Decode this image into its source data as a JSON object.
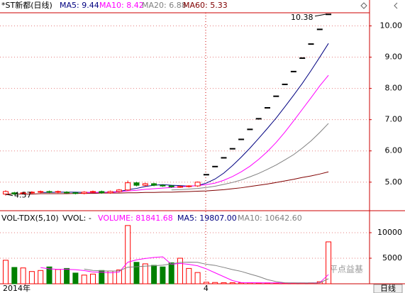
{
  "chart_data": {
    "type": "candlestick",
    "header": [
      {
        "text": "*ST新都(日线)",
        "color": "#000000"
      },
      {
        "text": "MA5: 9.44",
        "color": "#000080"
      },
      {
        "text": "MA10: 8.42",
        "color": "#ff00ff"
      },
      {
        "text": "MA20: 6.88",
        "color": "#808080"
      },
      {
        "text": "MA60: 5.33",
        "color": "#800000"
      }
    ],
    "categories": [
      "2014年",
      null,
      null,
      null,
      null,
      null,
      null,
      null,
      null,
      null,
      null,
      null,
      null,
      null,
      null,
      null,
      null,
      null,
      null,
      null,
      null,
      null,
      null,
      "4",
      null,
      null,
      null,
      null,
      null,
      null,
      null,
      null,
      null,
      null,
      null,
      null,
      null,
      null
    ],
    "open": [
      4.62,
      4.66,
      4.64,
      4.66,
      4.68,
      4.7,
      4.68,
      4.68,
      4.66,
      4.64,
      4.68,
      4.7,
      4.66,
      4.7,
      4.75,
      4.98,
      4.9,
      4.95,
      4.9,
      4.88,
      4.85,
      4.86,
      4.88,
      5.25,
      5.51,
      5.79,
      6.08,
      6.38,
      6.7,
      7.04,
      7.39,
      7.76,
      8.14,
      8.55,
      8.98,
      9.43,
      9.9,
      10.38
    ],
    "high": [
      4.74,
      4.69,
      4.69,
      4.71,
      4.73,
      4.73,
      4.73,
      4.71,
      4.69,
      4.71,
      4.73,
      4.73,
      4.73,
      4.78,
      5.05,
      5.01,
      4.98,
      4.98,
      4.93,
      4.91,
      4.89,
      4.9,
      5.02,
      5.25,
      5.51,
      5.79,
      6.08,
      6.38,
      6.7,
      7.04,
      7.39,
      7.76,
      8.14,
      8.55,
      8.98,
      9.43,
      9.9,
      10.38
    ],
    "low": [
      4.57,
      4.59,
      4.61,
      4.63,
      4.65,
      4.65,
      4.65,
      4.63,
      4.61,
      4.61,
      4.65,
      4.63,
      4.63,
      4.67,
      4.72,
      4.87,
      4.87,
      4.87,
      4.85,
      4.82,
      4.82,
      4.83,
      4.85,
      5.25,
      5.51,
      5.79,
      6.08,
      6.38,
      6.7,
      7.04,
      7.39,
      7.76,
      8.14,
      8.55,
      8.98,
      9.43,
      9.9,
      10.38
    ],
    "close": [
      4.7,
      4.62,
      4.66,
      4.68,
      4.7,
      4.68,
      4.7,
      4.66,
      4.64,
      4.68,
      4.7,
      4.66,
      4.7,
      4.75,
      4.98,
      4.9,
      4.95,
      4.9,
      4.88,
      4.85,
      4.86,
      4.88,
      5.0,
      5.25,
      5.51,
      5.79,
      6.08,
      6.38,
      6.7,
      7.04,
      7.39,
      7.76,
      8.14,
      8.55,
      8.98,
      9.43,
      9.9,
      10.38
    ],
    "up_color": "#ff0000",
    "down_color": "#008000",
    "doji_color": "#000000",
    "ma_series": [
      {
        "name": "MA5",
        "color": "#000080",
        "values": [
          null,
          null,
          null,
          null,
          4.67,
          4.67,
          4.68,
          4.68,
          4.68,
          4.67,
          4.67,
          4.67,
          4.68,
          4.7,
          4.76,
          4.8,
          4.86,
          4.9,
          4.92,
          4.9,
          4.89,
          4.87,
          4.89,
          4.97,
          5.1,
          5.29,
          5.53,
          5.8,
          6.09,
          6.4,
          6.72,
          7.05,
          7.41,
          7.78,
          8.16,
          8.57,
          9.0,
          9.44
        ]
      },
      {
        "name": "MA10",
        "color": "#ff00ff",
        "values": [
          null,
          null,
          null,
          null,
          null,
          null,
          null,
          null,
          null,
          4.67,
          4.67,
          4.67,
          4.67,
          4.69,
          4.72,
          4.74,
          4.77,
          4.79,
          4.81,
          4.83,
          4.85,
          4.87,
          4.89,
          4.92,
          4.97,
          5.06,
          5.18,
          5.33,
          5.51,
          5.73,
          5.98,
          6.27,
          6.6,
          6.96,
          7.33,
          7.7,
          8.08,
          8.42
        ]
      },
      {
        "name": "MA20",
        "color": "#808080",
        "values": [
          null,
          null,
          null,
          null,
          null,
          null,
          null,
          null,
          null,
          null,
          null,
          null,
          null,
          null,
          null,
          null,
          null,
          null,
          null,
          4.75,
          4.76,
          4.78,
          4.8,
          4.83,
          4.87,
          4.93,
          4.99,
          5.07,
          5.17,
          5.28,
          5.41,
          5.55,
          5.71,
          5.88,
          6.09,
          6.32,
          6.59,
          6.88
        ]
      },
      {
        "name": "MA60",
        "color": "#800000",
        "values": [
          4.62,
          4.62,
          4.62,
          4.62,
          4.63,
          4.63,
          4.63,
          4.63,
          4.64,
          4.64,
          4.64,
          4.65,
          4.65,
          4.65,
          4.66,
          4.66,
          4.67,
          4.67,
          4.68,
          4.68,
          4.69,
          4.7,
          4.71,
          4.72,
          4.74,
          4.76,
          4.79,
          4.82,
          4.86,
          4.9,
          4.94,
          4.99,
          5.04,
          5.09,
          5.15,
          5.2,
          5.26,
          5.33
        ]
      }
    ],
    "ylim": [
      4.2,
      10.42
    ],
    "yticks": [
      {
        "value": 5,
        "label": "5.00"
      },
      {
        "value": 6,
        "label": "6.00"
      },
      {
        "value": 7,
        "label": "7.00"
      },
      {
        "value": 8,
        "label": "8.00"
      },
      {
        "value": 9,
        "label": "9.00"
      },
      {
        "value": 10,
        "label": "10.00"
      }
    ],
    "annotations": [
      "10.38",
      "4.57"
    ],
    "volume": {
      "header": [
        {
          "text": "VOL-TDX(5,10)",
          "color": "#000000"
        },
        {
          "text": "VVOL: -",
          "color": "#000000"
        },
        {
          "text": "VOLUME: 81841.68",
          "color": "#ff00ff"
        },
        {
          "text": "MA5: 19807.00",
          "color": "#000080"
        },
        {
          "text": "MA10: 10642.60",
          "color": "#808080"
        }
      ],
      "values": [
        4600,
        3200,
        3100,
        2400,
        2600,
        3300,
        2800,
        3000,
        2100,
        1700,
        1900,
        2600,
        2500,
        2700,
        11400,
        4200,
        3900,
        3600,
        3300,
        4100,
        5000,
        3000,
        2200,
        300,
        250,
        200,
        200,
        180,
        180,
        160,
        160,
        150,
        150,
        140,
        150,
        160,
        400,
        8200
      ],
      "ma_series": [
        {
          "name": "MA5",
          "color": "#ff00ff",
          "values": [
            null,
            null,
            null,
            null,
            3180,
            2920,
            2820,
            2820,
            2760,
            2580,
            2300,
            2260,
            2160,
            2280,
            4220,
            4680,
            4940,
            5160,
            5280,
            3820,
            3980,
            3800,
            3520,
            2920,
            2150,
            1390,
            630,
            226,
            202,
            184,
            176,
            166,
            160,
            152,
            150,
            150,
            200,
            1812
          ]
        },
        {
          "name": "MA10",
          "color": "#808080",
          "values": [
            null,
            null,
            null,
            null,
            null,
            null,
            null,
            null,
            null,
            2880,
            2610,
            2540,
            2490,
            2520,
            3250,
            3340,
            3450,
            3520,
            3640,
            3880,
            4190,
            4230,
            4200,
            3810,
            3600,
            3200,
            2780,
            2420,
            1910,
            1420,
            820,
            420,
            190,
            170,
            160,
            160,
            180,
            990
          ]
        }
      ],
      "ylim": [
        0,
        11800
      ],
      "yticks": [
        5000,
        10000
      ]
    },
    "watermark": "平点益基",
    "period_button": "日线"
  }
}
